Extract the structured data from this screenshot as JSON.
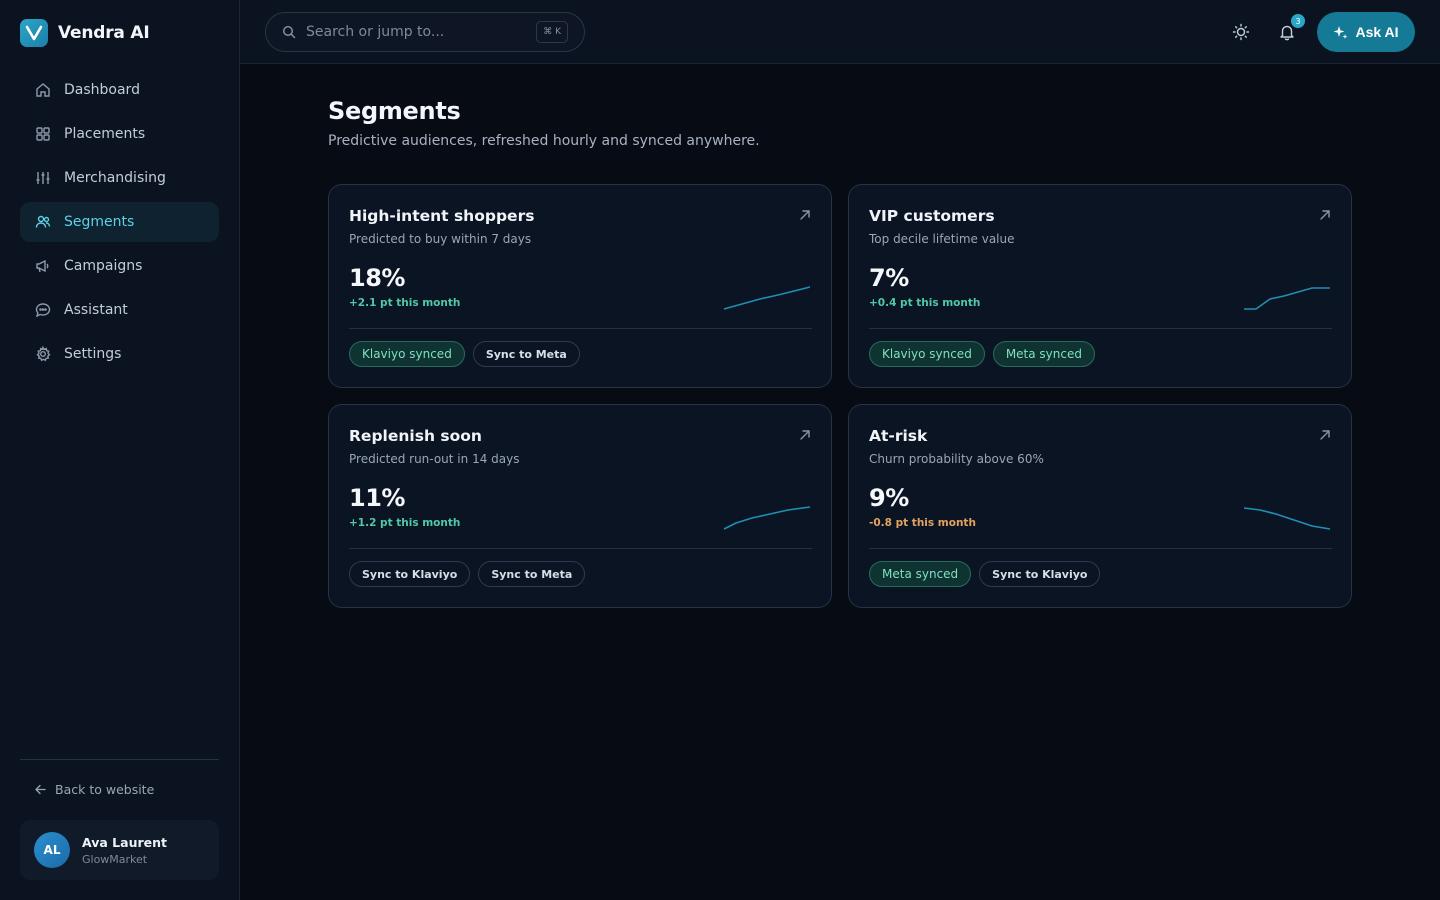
{
  "brand": {
    "name": "Vendra AI"
  },
  "nav": {
    "items": [
      {
        "label": "Dashboard",
        "icon": "home-icon",
        "active": false
      },
      {
        "label": "Placements",
        "icon": "grid-icon",
        "active": false
      },
      {
        "label": "Merchandising",
        "icon": "sliders-icon",
        "active": false
      },
      {
        "label": "Segments",
        "icon": "users-icon",
        "active": true
      },
      {
        "label": "Campaigns",
        "icon": "megaphone-icon",
        "active": false
      },
      {
        "label": "Assistant",
        "icon": "chat-icon",
        "active": false
      },
      {
        "label": "Settings",
        "icon": "gear-icon",
        "active": false
      }
    ],
    "back_label": "Back to website"
  },
  "user": {
    "initials": "AL",
    "name": "Ava Laurent",
    "org": "GlowMarket"
  },
  "topbar": {
    "search_placeholder": "Search or jump to...",
    "search_shortcut": "⌘ K",
    "notification_count": "3",
    "ask_label": "Ask AI"
  },
  "page": {
    "title": "Segments",
    "subtitle": "Predictive audiences, refreshed hourly and synced anywhere."
  },
  "segments": [
    {
      "title": "High-intent shoppers",
      "subtitle": "Predicted to buy within 7 days",
      "value": "18%",
      "delta": "+2.1 pt this month",
      "trend": "up",
      "chips": [
        {
          "label": "Klaviyo synced",
          "kind": "synced"
        },
        {
          "label": "Sync to Meta",
          "kind": "outline"
        }
      ]
    },
    {
      "title": "VIP customers",
      "subtitle": "Top decile lifetime value",
      "value": "7%",
      "delta": "+0.4 pt this month",
      "trend": "up",
      "chips": [
        {
          "label": "Klaviyo synced",
          "kind": "synced"
        },
        {
          "label": "Meta synced",
          "kind": "synced"
        }
      ]
    },
    {
      "title": "Replenish soon",
      "subtitle": "Predicted run-out in 14 days",
      "value": "11%",
      "delta": "+1.2 pt this month",
      "trend": "up",
      "chips": [
        {
          "label": "Sync to Klaviyo",
          "kind": "outline"
        },
        {
          "label": "Sync to Meta",
          "kind": "outline"
        }
      ]
    },
    {
      "title": "At-risk",
      "subtitle": "Churn probability above 60%",
      "value": "9%",
      "delta": "-0.8 pt this month",
      "trend": "down",
      "chips": [
        {
          "label": "Meta synced",
          "kind": "synced"
        },
        {
          "label": "Sync to Klaviyo",
          "kind": "outline"
        }
      ]
    }
  ],
  "colors": {
    "accent": "#2aa6c9",
    "positive": "#4fc9a8",
    "negative": "#e4a25f",
    "sparkline": "#1f8fb3"
  }
}
